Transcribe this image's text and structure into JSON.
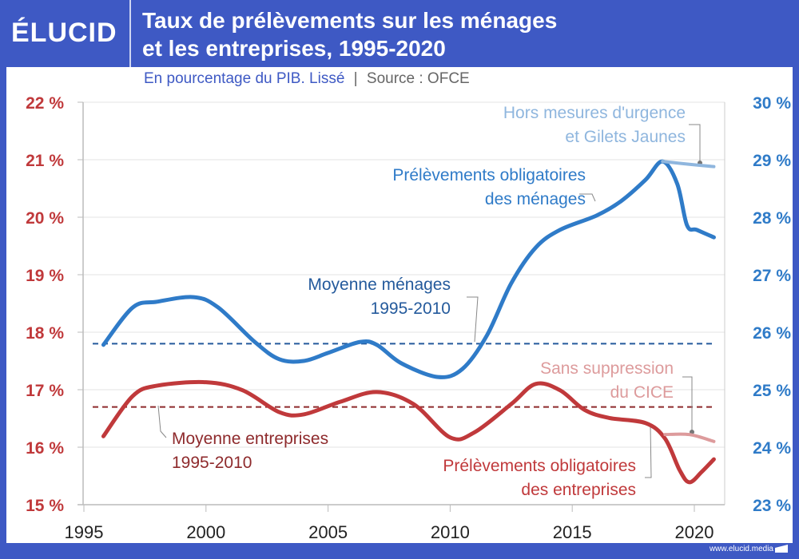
{
  "header": {
    "logo": "ÉLUCID",
    "title_line1": "Taux de prélèvements sur les ménages",
    "title_line2": "et les entreprises, 1995-2020",
    "subtitle": "En pourcentage du PIB. Lissé",
    "separator": "|",
    "source": "Source : OFCE"
  },
  "footer": {
    "url": "www.elucid.media"
  },
  "colors": {
    "brand": "#3e59c4",
    "households": "#2f7bc8",
    "households_light": "#8fb6de",
    "companies": "#c0393b",
    "companies_light": "#dd9b9c",
    "households_avg": "#245a9c",
    "companies_avg": "#8e2a2c"
  },
  "chart_data": {
    "type": "line",
    "title": "Taux de prélèvements sur les ménages et les entreprises, 1995-2020",
    "subtitle": "En pourcentage du PIB. Lissé | Source : OFCE",
    "xlim": [
      1995,
      2021
    ],
    "x_ticks": [
      "1995",
      "2000",
      "2005",
      "2010",
      "2015",
      "2020"
    ],
    "left_axis": {
      "ylim": [
        15,
        22
      ],
      "ticks": [
        "22 %",
        "21 %",
        "20 %",
        "19 %",
        "18 %",
        "17 %",
        "16 %",
        "15 %"
      ],
      "series": "companies"
    },
    "right_axis": {
      "ylim": [
        23,
        30
      ],
      "ticks": [
        "30 %",
        "29 %",
        "28 %",
        "27 %",
        "26 %",
        "25 %",
        "24 %",
        "23 %"
      ],
      "series": "households"
    },
    "grid": true,
    "series": [
      {
        "name": "Prélèvements obligatoires des ménages",
        "axis": "right",
        "x": [
          1995.8,
          1997,
          1998,
          1999.5,
          2000.5,
          2002,
          2003,
          2004,
          2005,
          2006.3,
          2007,
          2008,
          2009.5,
          2010.5,
          2011.5,
          2012.5,
          2013.5,
          2014.5,
          2016,
          2017,
          2018,
          2018.7,
          2019.3,
          2019.7,
          2020.1,
          2020.8
        ],
        "y": [
          25.78,
          26.43,
          26.53,
          26.61,
          26.43,
          25.83,
          25.53,
          25.5,
          25.64,
          25.83,
          25.78,
          25.46,
          25.22,
          25.36,
          25.94,
          26.85,
          27.47,
          27.78,
          28.03,
          28.28,
          28.65,
          28.97,
          28.58,
          27.86,
          27.78,
          27.65
        ]
      },
      {
        "name": "Hors mesures d'urgence et Gilets Jaunes",
        "axis": "right",
        "x": [
          2018.7,
          2019.8,
          2020.8
        ],
        "y": [
          28.97,
          28.92,
          28.88
        ]
      },
      {
        "name": "Prélèvements obligatoires des entreprises",
        "axis": "left",
        "x": [
          1995.8,
          1997,
          1998,
          2000,
          2001.5,
          2003,
          2004,
          2005.5,
          2007,
          2008.5,
          2010,
          2011,
          2012.5,
          2013.5,
          2014.5,
          2015.5,
          2016.5,
          2018,
          2018.8,
          2019.4,
          2019.8,
          2020.3,
          2020.8
        ],
        "y": [
          16.19,
          16.89,
          17.07,
          17.13,
          16.99,
          16.61,
          16.57,
          16.79,
          16.96,
          16.75,
          16.17,
          16.26,
          16.75,
          17.1,
          16.99,
          16.65,
          16.51,
          16.42,
          16.15,
          15.6,
          15.39,
          15.57,
          15.79
        ]
      },
      {
        "name": "Sans suppression du CICE",
        "axis": "left",
        "x": [
          2018.8,
          2019.8,
          2020.8
        ],
        "y": [
          16.22,
          16.22,
          16.1
        ]
      },
      {
        "name": "Moyenne ménages 1995-2010",
        "axis": "right",
        "type": "hline",
        "y": 25.8
      },
      {
        "name": "Moyenne entreprises 1995-2010",
        "axis": "left",
        "type": "hline",
        "y": 16.7
      }
    ],
    "annotations": [
      {
        "id": "hors",
        "lines": [
          "Hors mesures d'urgence",
          "et Gilets Jaunes"
        ]
      },
      {
        "id": "pom",
        "lines": [
          "Prélèvements obligatoires",
          "des ménages"
        ]
      },
      {
        "id": "moym",
        "lines": [
          "Moyenne ménages",
          "1995-2010"
        ]
      },
      {
        "id": "sans",
        "lines": [
          "Sans suppression",
          "du CICE"
        ]
      },
      {
        "id": "moye",
        "lines": [
          "Moyenne entreprises",
          "1995-2010"
        ]
      },
      {
        "id": "poe",
        "lines": [
          "Prélèvements obligatoires",
          "des entreprises"
        ]
      }
    ]
  }
}
